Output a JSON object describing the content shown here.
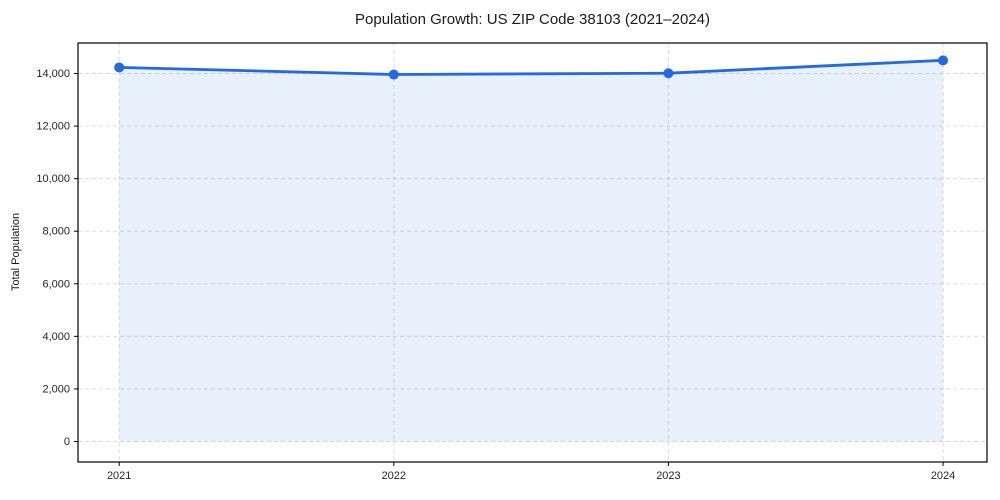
{
  "figure": {
    "background": "#ffffff"
  },
  "chart_data": {
    "type": "line",
    "title": "Population Growth: US ZIP Code 38103 (2021–2024)",
    "xlabel": "",
    "ylabel": "Total Population",
    "x": [
      2021,
      2022,
      2023,
      2024
    ],
    "series": [
      {
        "name": "Total Population",
        "values": [
          14230,
          13960,
          14010,
          14500
        ]
      }
    ],
    "xticks": {
      "values": [
        2021,
        2022,
        2023,
        2024
      ],
      "labels": [
        "2021",
        "2022",
        "2023",
        "2024"
      ]
    },
    "yticks": {
      "values": [
        0,
        2000,
        4000,
        6000,
        8000,
        10000,
        12000,
        14000
      ],
      "labels": [
        "0",
        "2,000",
        "4,000",
        "6,000",
        "8,000",
        "10,000",
        "12,000",
        "14,000"
      ]
    },
    "xlim": [
      2020.85,
      2024.16
    ],
    "ylim": [
      -780,
      15160
    ],
    "grid": true,
    "grid_style": "dashed",
    "legend": "none",
    "area_baseline": 0,
    "colors": {
      "line": "#2269e2",
      "marker": "#2269e2",
      "fill": "rgba(34,105,226,0.10)",
      "grid": "#d9d9d9",
      "spine": "#000000",
      "tick_label": "#262626"
    },
    "marker_radius": 5,
    "line_width": 2.8
  }
}
